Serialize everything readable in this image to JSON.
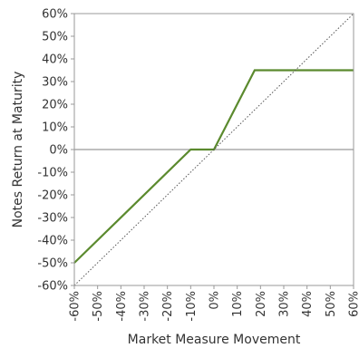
{
  "chart_data": {
    "type": "line",
    "xlabel": "Market Measure Movement",
    "ylabel": "Notes Return at Maturity",
    "xlim": [
      -60,
      60
    ],
    "ylim": [
      -60,
      60
    ],
    "x_ticks": [
      "-60%",
      "-50%",
      "-40%",
      "-30%",
      "-20%",
      "-10%",
      "0%",
      "10%",
      "20%",
      "30%",
      "40%",
      "50%",
      "60%"
    ],
    "y_ticks": [
      "60%",
      "50%",
      "40%",
      "30%",
      "20%",
      "10%",
      "0%",
      "-10%",
      "-20%",
      "-30%",
      "-40%",
      "-50%",
      "-60%"
    ],
    "grid": false,
    "series": [
      {
        "style": "solid",
        "color": "#5b8a2e",
        "x": [
          -60,
          -10,
          0,
          17.5,
          60
        ],
        "y": [
          -50,
          0,
          0,
          35,
          35
        ]
      },
      {
        "style": "dotted",
        "color": "#555555",
        "x": [
          -60,
          60
        ],
        "y": [
          -60,
          60
        ]
      }
    ],
    "reference_line": {
      "y": 0,
      "color": "#999999"
    }
  }
}
